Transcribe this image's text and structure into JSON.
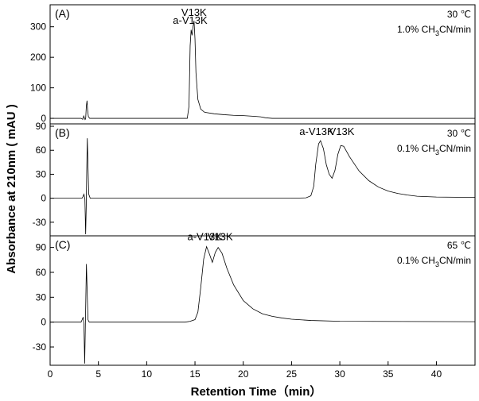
{
  "chart_data": {
    "type": "line",
    "ylabel": "Absorbance  at  210nm ( mAU )",
    "xlabel": "Retention Time（min）",
    "xlim": [
      0,
      44
    ],
    "xticks": [
      0,
      5,
      10,
      15,
      20,
      25,
      30,
      35,
      40
    ],
    "panels": [
      {
        "label": "(A)",
        "temperature": "30 ℃",
        "gradient": "1.0% CH3CN/min",
        "gradient_parts": {
          "pre": "1.0% CH",
          "sub1": "3",
          "mid": "CN/min"
        },
        "ylim": [
          -18,
          372
        ],
        "yticks": [
          0,
          100,
          200,
          300
        ],
        "peak_labels": [
          {
            "text": "a-V13K",
            "x": 14.5,
            "y": 292
          },
          {
            "text": "V13K",
            "x": 14.9,
            "y": 318
          }
        ],
        "trace": [
          [
            0,
            0
          ],
          [
            3.2,
            0
          ],
          [
            3.38,
            -3
          ],
          [
            3.48,
            8
          ],
          [
            3.55,
            2
          ],
          [
            3.62,
            -4
          ],
          [
            3.68,
            -1
          ],
          [
            3.75,
            40
          ],
          [
            3.82,
            58
          ],
          [
            3.88,
            28
          ],
          [
            3.96,
            6
          ],
          [
            4.1,
            0
          ],
          [
            14.2,
            0
          ],
          [
            14.38,
            40
          ],
          [
            14.5,
            238
          ],
          [
            14.6,
            290
          ],
          [
            14.7,
            272
          ],
          [
            14.8,
            300
          ],
          [
            14.9,
            320
          ],
          [
            15.0,
            260
          ],
          [
            15.1,
            150
          ],
          [
            15.3,
            62
          ],
          [
            15.6,
            30
          ],
          [
            16,
            20
          ],
          [
            17,
            15
          ],
          [
            18,
            12
          ],
          [
            19,
            10
          ],
          [
            20,
            9
          ],
          [
            21,
            7
          ],
          [
            21.8,
            5
          ],
          [
            22.3,
            2
          ],
          [
            23,
            0
          ],
          [
            44,
            0
          ]
        ]
      },
      {
        "label": "(B)",
        "temperature": "30 ℃",
        "gradient": "0.1% CH3CN/min",
        "gradient_parts": {
          "pre": "0.1% CH",
          "sub1": "3",
          "mid": "CN/min"
        },
        "ylim": [
          -47,
          93
        ],
        "yticks": [
          -30,
          0,
          30,
          60,
          90
        ],
        "peak_labels": [
          {
            "text": "a-V13K",
            "x": 27.6,
            "y": 72
          },
          {
            "text": "V13K",
            "x": 30.2,
            "y": 72
          }
        ],
        "trace": [
          [
            0,
            0
          ],
          [
            3.3,
            0
          ],
          [
            3.4,
            2
          ],
          [
            3.5,
            5
          ],
          [
            3.6,
            -1
          ],
          [
            3.68,
            -45
          ],
          [
            3.74,
            -10
          ],
          [
            3.8,
            42
          ],
          [
            3.85,
            75
          ],
          [
            3.92,
            40
          ],
          [
            4.0,
            5
          ],
          [
            4.15,
            0
          ],
          [
            25,
            0
          ],
          [
            26.5,
            0.5
          ],
          [
            27,
            3
          ],
          [
            27.3,
            15
          ],
          [
            27.5,
            42
          ],
          [
            27.8,
            68
          ],
          [
            28.0,
            72
          ],
          [
            28.3,
            62
          ],
          [
            28.6,
            42
          ],
          [
            28.9,
            30
          ],
          [
            29.2,
            25
          ],
          [
            29.5,
            35
          ],
          [
            29.8,
            55
          ],
          [
            30.1,
            66
          ],
          [
            30.4,
            65
          ],
          [
            31,
            52
          ],
          [
            32,
            34
          ],
          [
            33,
            22
          ],
          [
            34,
            14
          ],
          [
            35,
            9
          ],
          [
            36,
            6
          ],
          [
            37,
            4
          ],
          [
            38,
            2.5
          ],
          [
            40,
            1.5
          ],
          [
            44,
            1
          ]
        ]
      },
      {
        "label": "(C)",
        "temperature": "65 ℃",
        "gradient": "0.1% CH3CN/min",
        "gradient_parts": {
          "pre": "0.1% CH",
          "sub1": "3",
          "mid": "CN/min"
        },
        "ylim": [
          -52,
          104
        ],
        "yticks": [
          -30,
          0,
          30,
          60,
          90
        ],
        "peak_labels": [
          {
            "text": "a-V13K",
            "x": 16.0,
            "y": 92
          },
          {
            "text": "V13K",
            "x": 17.6,
            "y": 92
          }
        ],
        "trace": [
          [
            0,
            0
          ],
          [
            3.2,
            0
          ],
          [
            3.32,
            3
          ],
          [
            3.42,
            6
          ],
          [
            3.5,
            -3
          ],
          [
            3.58,
            -50
          ],
          [
            3.64,
            -10
          ],
          [
            3.7,
            30
          ],
          [
            3.76,
            70
          ],
          [
            3.84,
            35
          ],
          [
            3.92,
            3
          ],
          [
            4.05,
            0
          ],
          [
            14,
            0
          ],
          [
            14.5,
            1
          ],
          [
            15,
            3
          ],
          [
            15.3,
            12
          ],
          [
            15.6,
            42
          ],
          [
            15.9,
            76
          ],
          [
            16.2,
            91
          ],
          [
            16.5,
            82
          ],
          [
            16.8,
            72
          ],
          [
            17.1,
            84
          ],
          [
            17.4,
            90
          ],
          [
            17.8,
            83
          ],
          [
            18.3,
            65
          ],
          [
            19,
            45
          ],
          [
            20,
            26
          ],
          [
            21,
            16
          ],
          [
            22,
            10
          ],
          [
            23,
            7
          ],
          [
            24,
            5
          ],
          [
            25,
            3.5
          ],
          [
            27,
            2
          ],
          [
            30,
            1
          ],
          [
            44,
            0.5
          ]
        ]
      }
    ]
  }
}
